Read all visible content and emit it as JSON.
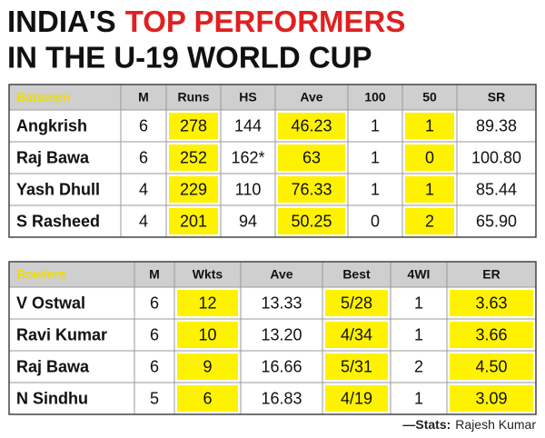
{
  "title": {
    "prefix": "INDIA'S",
    "highlight": "TOP PERFORMERS",
    "line2": "IN THE U-19 WORLD CUP"
  },
  "batsmen": {
    "header": [
      "Batsmen",
      "M",
      "Runs",
      "HS",
      "Ave",
      "100",
      "50",
      "SR"
    ],
    "rows": [
      [
        "Angkrish",
        "6",
        "278",
        "144",
        "46.23",
        "1",
        "1",
        "89.38"
      ],
      [
        "Raj Bawa",
        "6",
        "252",
        "162*",
        "63",
        "1",
        "0",
        "100.80"
      ],
      [
        "Yash Dhull",
        "4",
        "229",
        "110",
        "76.33",
        "1",
        "1",
        "85.44"
      ],
      [
        "S Rasheed",
        "4",
        "201",
        "94",
        "50.25",
        "0",
        "2",
        "65.90"
      ]
    ]
  },
  "bowlers": {
    "header": [
      "Bowlers",
      "M",
      "Wkts",
      "Ave",
      "Best",
      "4WI",
      "ER"
    ],
    "rows": [
      [
        "V Ostwal",
        "6",
        "12",
        "13.33",
        "5/28",
        "1",
        "3.63"
      ],
      [
        "Ravi Kumar",
        "6",
        "10",
        "13.20",
        "4/34",
        "1",
        "3.66"
      ],
      [
        "Raj Bawa",
        "6",
        "9",
        "16.66",
        "5/31",
        "2",
        "4.50"
      ],
      [
        "N Sindhu",
        "5",
        "6",
        "16.83",
        "4/19",
        "1",
        "3.09"
      ]
    ]
  },
  "credit": {
    "label": "—Stats:",
    "name": "Rajesh Kumar"
  }
}
